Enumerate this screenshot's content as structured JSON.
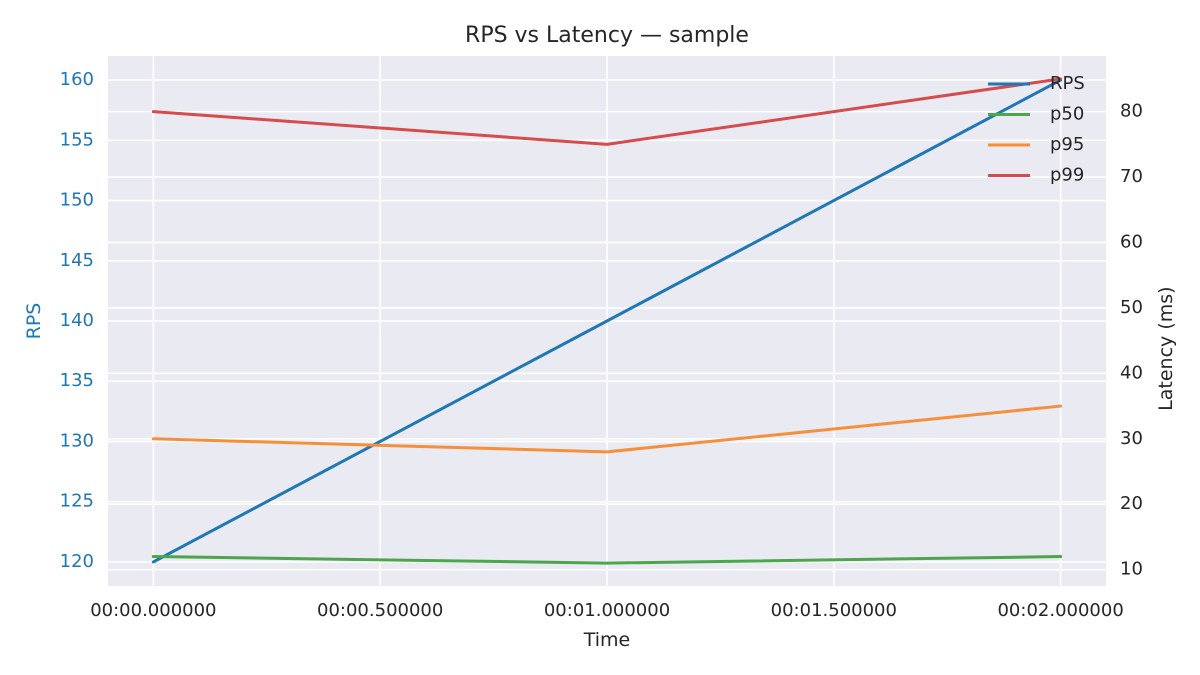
{
  "chart_data": {
    "type": "line",
    "title": "RPS vs Latency — sample",
    "xlabel": "Time",
    "ylabel_left": "RPS",
    "ylabel_right": "Latency (ms)",
    "x_ticks": [
      "00:00.000000",
      "00:00.500000",
      "00:01.000000",
      "00:01.500000",
      "00:02.000000"
    ],
    "x": [
      0,
      1,
      2
    ],
    "xlim": [
      -0.1,
      2.1
    ],
    "ylim_left": [
      118,
      162
    ],
    "ylim_right": [
      7.5,
      88.5
    ],
    "left_ticks": [
      120,
      125,
      130,
      135,
      140,
      145,
      150,
      155,
      160
    ],
    "right_ticks": [
      10,
      20,
      30,
      40,
      50,
      60,
      70,
      80
    ],
    "grid": true,
    "legend_position": "top-right",
    "series": [
      {
        "name": "RPS",
        "axis": "left",
        "color": "#1f77b4",
        "values": [
          120,
          140,
          160
        ]
      },
      {
        "name": "p50",
        "axis": "right",
        "color": "#4ca64c",
        "values": [
          12,
          11,
          12
        ]
      },
      {
        "name": "p95",
        "axis": "right",
        "color": "#f58f3a",
        "values": [
          30,
          28,
          35
        ]
      },
      {
        "name": "p99",
        "axis": "right",
        "color": "#d64b4b",
        "values": [
          80,
          75,
          85
        ]
      }
    ],
    "colors": {
      "plot_background": "#eaeaf2",
      "grid": "#ffffff",
      "left_axis": "#1f77b4",
      "text": "#262626"
    }
  }
}
